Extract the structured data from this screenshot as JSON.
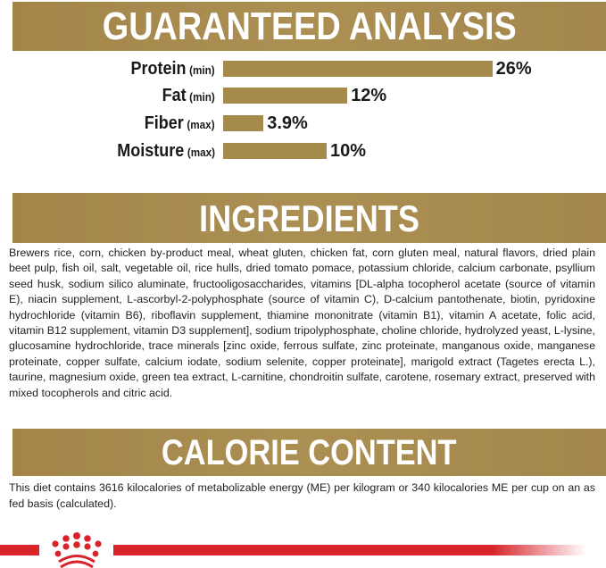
{
  "guaranteed_analysis": {
    "title": "GUARANTEED ANALYSIS",
    "bar_color": "#a68a4c",
    "rows": [
      {
        "name": "Protein",
        "qualifier": "(min)",
        "value": 26,
        "label": "26%"
      },
      {
        "name": "Fat",
        "qualifier": "(min)",
        "value": 12,
        "label": "12%"
      },
      {
        "name": "Fiber",
        "qualifier": "(max)",
        "value": 3.9,
        "label": "3.9%"
      },
      {
        "name": "Moisture",
        "qualifier": "(max)",
        "value": 10,
        "label": "10%"
      }
    ]
  },
  "ingredients": {
    "title": "INGREDIENTS",
    "text": "Brewers rice, corn, chicken by-product meal, wheat gluten, chicken fat, corn gluten meal, natural flavors, dried plain beet pulp, fish oil, salt, vegetable oil, rice hulls, dried tomato pomace, potassium chloride, calcium carbonate, psyllium seed husk, sodium silico aluminate, fructooligosaccharides, vitamins [DL-alpha tocopherol acetate (source of vitamin E), niacin supplement, L-ascorbyl-2-polyphosphate (source of vitamin C), D-calcium pantothenate, biotin, pyridoxine hydrochloride (vitamin B6), riboflavin supplement, thiamine mononitrate (vitamin B1), vitamin A acetate, folic acid, vitamin B12 supplement, vitamin D3 supplement], sodium tripolyphosphate, choline chloride, hydrolyzed yeast, L-lysine, glucosamine hydrochloride, trace minerals [zinc oxide, ferrous sulfate, zinc proteinate, manganous oxide, manganese proteinate, copper sulfate, calcium iodate, sodium selenite, copper proteinate], marigold extract (Tagetes erecta L.), taurine, magnesium oxide, green tea extract, L-carnitine, chondroitin sulfate, carotene, rosemary extract, preserved with mixed tocopherols and citric acid."
  },
  "calorie_content": {
    "title": "CALORIE CONTENT",
    "text": "This diet contains 3616 kilocalories of metabolizable energy (ME) per kilogram or 340 kilocalories ME per cup on an as fed basis (calculated)."
  },
  "brand": {
    "logo": "royal-canin-crown-logo",
    "color": "#d8232a"
  }
}
